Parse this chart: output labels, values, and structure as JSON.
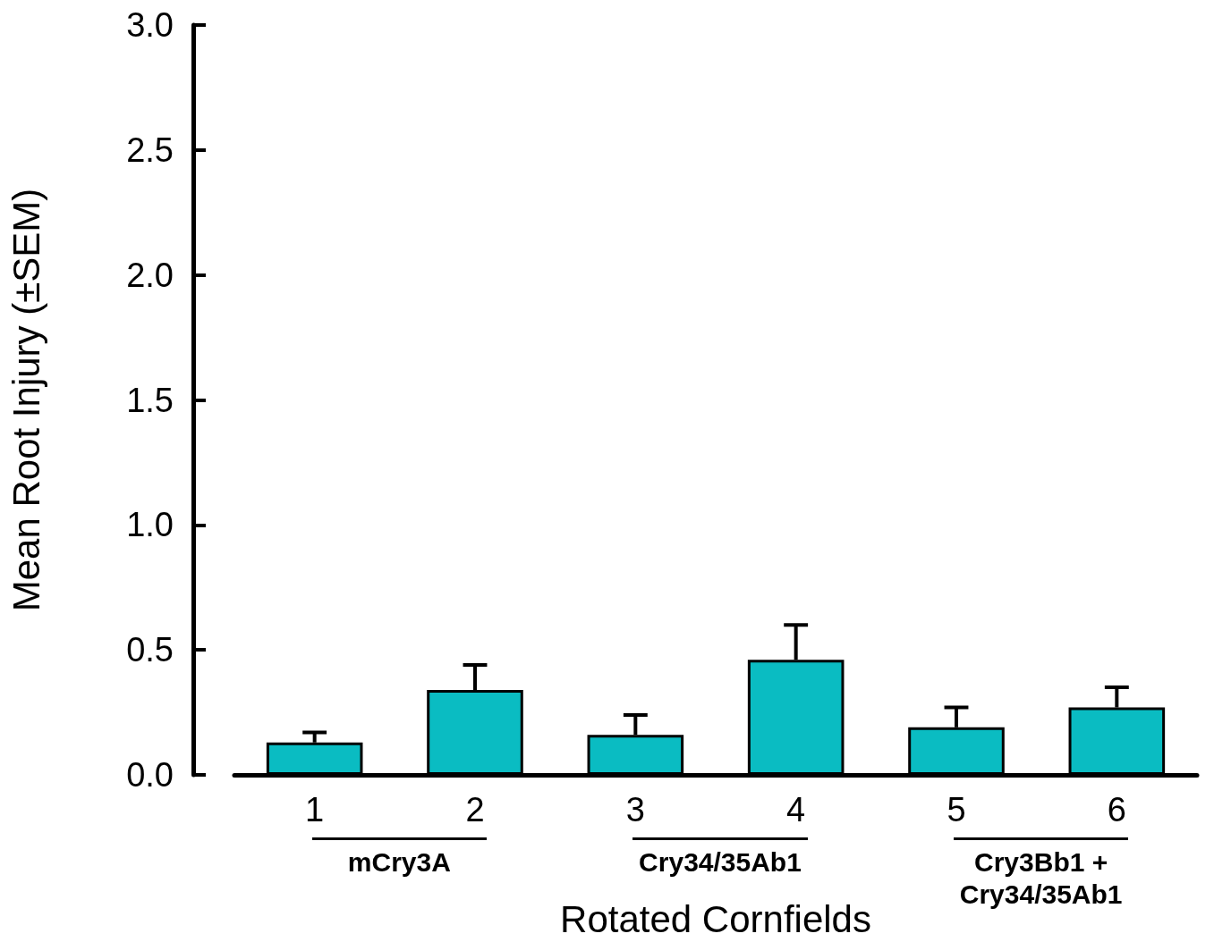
{
  "chart_data": {
    "type": "bar",
    "xlabel": "Rotated Cornfields",
    "ylabel": "Mean Root Injury (±SEM)",
    "categories": [
      "1",
      "2",
      "3",
      "4",
      "5",
      "6"
    ],
    "values": [
      0.13,
      0.34,
      0.16,
      0.46,
      0.19,
      0.27
    ],
    "errors": [
      [
        0.13,
        0.17
      ],
      [
        0.34,
        0.44
      ],
      [
        0.16,
        0.24
      ],
      [
        0.46,
        0.6
      ],
      [
        0.19,
        0.27
      ],
      [
        0.27,
        0.35
      ]
    ],
    "color": "#0abcc2",
    "ylim": [
      0,
      3
    ],
    "yticks": [
      {
        "value": 0,
        "label": "0.0"
      },
      {
        "value": 0.5,
        "label": "0.5"
      },
      {
        "value": 1,
        "label": "1.0"
      },
      {
        "value": 1.5,
        "label": "1.5"
      },
      {
        "value": 2,
        "label": "2.0"
      },
      {
        "value": 2.5,
        "label": "2.5"
      },
      {
        "value": 3,
        "label": "3.0"
      }
    ],
    "annotations": [
      "mCry3A",
      "Cry34/35Ab1",
      "Cry3Bb1 + Cry34/35Ab1"
    ],
    "grid": false
  }
}
